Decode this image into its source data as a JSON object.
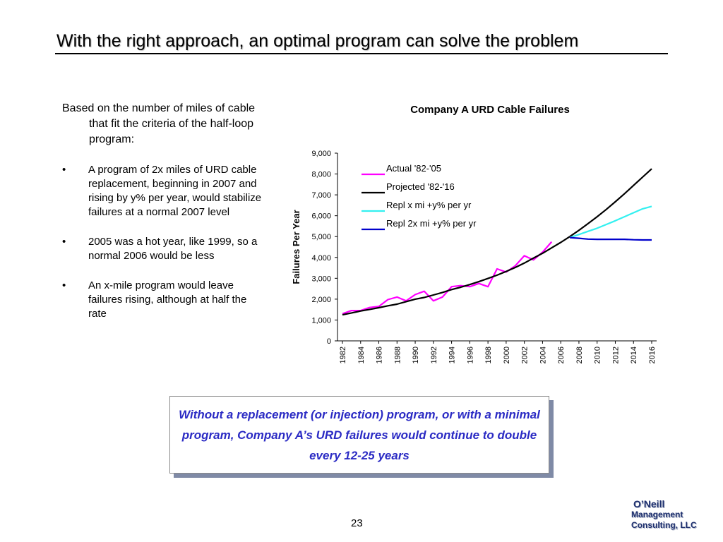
{
  "slide": {
    "title": "With the right approach, an optimal program can solve the problem",
    "intro": "Based on the number of miles of cable that fit the criteria of the half-loop program:",
    "bullets": [
      "A program of 2x miles of URD cable replacement, beginning in 2007 and rising by y% per year, would stabilize failures at a normal 2007 level",
      "2005 was a hot year, like 1999, so a normal 2006 would be less",
      "An x-mile program would leave failures rising, although at half the rate"
    ],
    "callout": "Without a replacement (or injection) program, or with a minimal program, Company A’s URD failures would continue to double every 12-25 years",
    "page_number": "23",
    "logo": {
      "line1": "O’Neill",
      "line2": "Management",
      "line3": "Consulting, LLC"
    },
    "colors": {
      "callout_text": "#2b2bc4",
      "logo": "#1d2f6e"
    }
  },
  "chart_data": {
    "type": "line",
    "title": "Company A URD Cable Failures",
    "xlabel": "",
    "ylabel": "Failures Per Year",
    "ylim": [
      0,
      9000
    ],
    "yticks": [
      0,
      1000,
      2000,
      3000,
      4000,
      5000,
      6000,
      7000,
      8000,
      9000
    ],
    "ytick_labels": [
      "0",
      "1,000",
      "2,000",
      "3,000",
      "4,000",
      "5,000",
      "6,000",
      "7,000",
      "8,000",
      "9,000"
    ],
    "xlim": [
      1982,
      2016
    ],
    "xticks": [
      "1982",
      "1984",
      "1986",
      "1988",
      "1990",
      "1992",
      "1994",
      "1996",
      "1998",
      "2000",
      "2002",
      "2004",
      "2006",
      "2008",
      "2010",
      "2012",
      "2014",
      "2016"
    ],
    "grid": false,
    "legend_position": "top-left",
    "series": [
      {
        "name": "Actual '82-'05",
        "color": "#ff00ff",
        "x": [
          1982,
          1983,
          1984,
          1985,
          1986,
          1987,
          1988,
          1989,
          1990,
          1991,
          1992,
          1993,
          1994,
          1995,
          1996,
          1997,
          1998,
          1999,
          2000,
          2001,
          2002,
          2003,
          2004,
          2005
        ],
        "y": [
          1300,
          1450,
          1450,
          1600,
          1650,
          1980,
          2100,
          1920,
          2220,
          2380,
          1920,
          2100,
          2600,
          2650,
          2600,
          2750,
          2600,
          3450,
          3300,
          3600,
          4080,
          3880,
          4250,
          4750
        ]
      },
      {
        "name": "Projected '82-'16",
        "color": "#000000",
        "x": [
          1982,
          1983,
          1984,
          1985,
          1986,
          1987,
          1988,
          1989,
          1990,
          1991,
          1992,
          1993,
          1994,
          1995,
          1996,
          1997,
          1998,
          1999,
          2000,
          2001,
          2002,
          2003,
          2004,
          2005,
          2006,
          2007,
          2008,
          2009,
          2010,
          2011,
          2012,
          2013,
          2014,
          2015,
          2016
        ],
        "y": [
          1250,
          1340,
          1430,
          1510,
          1590,
          1680,
          1760,
          1880,
          2000,
          2080,
          2200,
          2320,
          2460,
          2570,
          2700,
          2840,
          2990,
          3150,
          3330,
          3520,
          3730,
          3970,
          4200,
          4460,
          4720,
          5000,
          5300,
          5620,
          5950,
          6300,
          6670,
          7050,
          7450,
          7850,
          8250
        ]
      },
      {
        "name": "Repl x mi +y% per yr",
        "color": "#33f0f0",
        "x": [
          2007,
          2008,
          2009,
          2010,
          2011,
          2012,
          2013,
          2014,
          2015,
          2016
        ],
        "y": [
          4950,
          5100,
          5250,
          5400,
          5580,
          5760,
          5950,
          6140,
          6330,
          6450
        ]
      },
      {
        "name": "Repl 2x mi +y% per yr",
        "color": "#0000cc",
        "x": [
          2007,
          2008,
          2009,
          2010,
          2011,
          2012,
          2013,
          2014,
          2015,
          2016
        ],
        "y": [
          4950,
          4920,
          4880,
          4870,
          4870,
          4870,
          4870,
          4850,
          4840,
          4840
        ]
      }
    ]
  }
}
